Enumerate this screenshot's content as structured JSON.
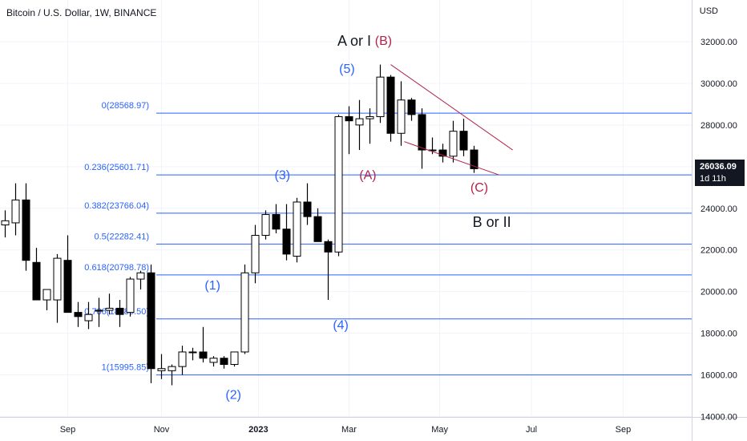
{
  "header": {
    "title": "Bitcoin / U.S. Dollar, 1W, BINANCE",
    "currency": "USD"
  },
  "price_tag": {
    "price": "26036.09",
    "countdown": "1d 11h"
  },
  "colors": {
    "up_body": "#ffffff",
    "down_body": "#000000",
    "candle_border": "#000000",
    "fib_line": "#2962ff",
    "fib_text": "#2962ff",
    "wave_blue": "#2962ff",
    "wave_red": "#b22449",
    "channel": "#b22449",
    "axis_text": "#131722",
    "grid": "#f0f3fa"
  },
  "chart_data": {
    "type": "candlestick",
    "title": "Bitcoin / U.S. Dollar, 1W, BINANCE",
    "y_axis": {
      "unit": "USD",
      "range": [
        14000,
        32500
      ],
      "ticks": [
        "14000.00",
        "16000.00",
        "18000.00",
        "20000.00",
        "22000.00",
        "24000.00",
        "26000.00",
        "28000.00",
        "30000.00",
        "32000.00"
      ]
    },
    "x_axis": {
      "ticks": [
        {
          "label": "Sep",
          "candle": 6
        },
        {
          "label": "Nov",
          "candle": 15
        },
        {
          "label": "2023",
          "candle": 24.3
        },
        {
          "label": "Mar",
          "candle": 33
        },
        {
          "label": "May",
          "candle": 41.7
        },
        {
          "label": "Jul",
          "candle": 50.5
        },
        {
          "label": "Sep",
          "candle": 59.3
        }
      ]
    },
    "candles": [
      {
        "o": 23200,
        "h": 23900,
        "l": 22600,
        "c": 23400
      },
      {
        "o": 23300,
        "h": 25200,
        "l": 22700,
        "c": 24400
      },
      {
        "o": 24400,
        "h": 25200,
        "l": 21000,
        "c": 21500
      },
      {
        "o": 21400,
        "h": 22100,
        "l": 19600,
        "c": 19600
      },
      {
        "o": 19600,
        "h": 20000,
        "l": 19100,
        "c": 20100
      },
      {
        "o": 19600,
        "h": 21800,
        "l": 18500,
        "c": 21600
      },
      {
        "o": 21500,
        "h": 22700,
        "l": 19100,
        "c": 19000
      },
      {
        "o": 19000,
        "h": 19500,
        "l": 18300,
        "c": 18800
      },
      {
        "o": 18600,
        "h": 19500,
        "l": 18200,
        "c": 18900
      },
      {
        "o": 19100,
        "h": 19700,
        "l": 18300,
        "c": 19100
      },
      {
        "o": 19100,
        "h": 19900,
        "l": 18900,
        "c": 19200
      },
      {
        "o": 19200,
        "h": 19600,
        "l": 18300,
        "c": 18900
      },
      {
        "o": 19000,
        "h": 20700,
        "l": 18800,
        "c": 20600
      },
      {
        "o": 20600,
        "h": 21000,
        "l": 20100,
        "c": 20900
      },
      {
        "o": 20900,
        "h": 21300,
        "l": 15600,
        "c": 16300
      },
      {
        "o": 16200,
        "h": 17000,
        "l": 15800,
        "c": 16300
      },
      {
        "o": 16200,
        "h": 16500,
        "l": 15500,
        "c": 16400
      },
      {
        "o": 16400,
        "h": 17400,
        "l": 16000,
        "c": 17100
      },
      {
        "o": 17100,
        "h": 17300,
        "l": 16700,
        "c": 17100
      },
      {
        "o": 17100,
        "h": 18300,
        "l": 16600,
        "c": 16800
      },
      {
        "o": 16600,
        "h": 16900,
        "l": 16400,
        "c": 16800
      },
      {
        "o": 16800,
        "h": 16900,
        "l": 16300,
        "c": 16500
      },
      {
        "o": 16500,
        "h": 17100,
        "l": 16400,
        "c": 17100
      },
      {
        "o": 17100,
        "h": 21300,
        "l": 17000,
        "c": 20900
      },
      {
        "o": 20900,
        "h": 23200,
        "l": 20400,
        "c": 22700
      },
      {
        "o": 22700,
        "h": 23900,
        "l": 22500,
        "c": 23700
      },
      {
        "o": 23700,
        "h": 24200,
        "l": 22800,
        "c": 23000
      },
      {
        "o": 23000,
        "h": 24200,
        "l": 21500,
        "c": 21800
      },
      {
        "o": 21700,
        "h": 24500,
        "l": 21400,
        "c": 24300
      },
      {
        "o": 24300,
        "h": 25200,
        "l": 23200,
        "c": 23600
      },
      {
        "o": 23600,
        "h": 24000,
        "l": 22500,
        "c": 22400
      },
      {
        "o": 22400,
        "h": 22500,
        "l": 19600,
        "c": 21900
      },
      {
        "o": 21900,
        "h": 28500,
        "l": 21700,
        "c": 28400
      },
      {
        "o": 28400,
        "h": 28900,
        "l": 26600,
        "c": 28200
      },
      {
        "o": 28000,
        "h": 29200,
        "l": 26800,
        "c": 28300
      },
      {
        "o": 28300,
        "h": 28800,
        "l": 27100,
        "c": 28400
      },
      {
        "o": 28400,
        "h": 30900,
        "l": 28100,
        "c": 30300
      },
      {
        "o": 30300,
        "h": 30400,
        "l": 27200,
        "c": 27600
      },
      {
        "o": 27600,
        "h": 30100,
        "l": 27000,
        "c": 29200
      },
      {
        "o": 29200,
        "h": 29300,
        "l": 28200,
        "c": 28500
      },
      {
        "o": 28500,
        "h": 28800,
        "l": 25900,
        "c": 26800
      },
      {
        "o": 26800,
        "h": 27400,
        "l": 26600,
        "c": 26800
      },
      {
        "o": 26800,
        "h": 27100,
        "l": 26200,
        "c": 26500
      },
      {
        "o": 26500,
        "h": 28200,
        "l": 26200,
        "c": 27700
      },
      {
        "o": 27700,
        "h": 28300,
        "l": 26500,
        "c": 26800
      },
      {
        "o": 26800,
        "h": 27000,
        "l": 25700,
        "c": 25900
      }
    ],
    "fib_levels": [
      {
        "label": "0(28568.97)",
        "price": 28568.97
      },
      {
        "label": "0.236(25601.71)",
        "price": 25601.71
      },
      {
        "label": "0.382(23766.04)",
        "price": 23766.04
      },
      {
        "label": "0.5(22282.41)",
        "price": 22282.41
      },
      {
        "label": "0.618(20798.78)",
        "price": 20798.78
      },
      {
        "label": "0.786(18686.50)",
        "price": 18686.5
      },
      {
        "label": "1(15995.85)",
        "price": 15995.85
      }
    ],
    "wave_labels": [
      {
        "text": "A or I",
        "color": "black",
        "candle": 33.5,
        "price": 31800,
        "size": 18
      },
      {
        "text": "(B)",
        "color": "red",
        "candle": 36.3,
        "price": 31850,
        "size": 16
      },
      {
        "text": "(5)",
        "color": "blue",
        "candle": 32.8,
        "price": 30500,
        "size": 16
      },
      {
        "text": "(3)",
        "color": "blue",
        "candle": 26.6,
        "price": 25400,
        "size": 16
      },
      {
        "text": "(A)",
        "color": "red",
        "candle": 34.8,
        "price": 25400,
        "size": 16
      },
      {
        "text": "(C)",
        "color": "red",
        "candle": 45.5,
        "price": 24800,
        "size": 16
      },
      {
        "text": "B or II",
        "color": "black",
        "candle": 46.7,
        "price": 23100,
        "size": 18
      },
      {
        "text": "(1)",
        "color": "blue",
        "candle": 19.9,
        "price": 20100,
        "size": 16
      },
      {
        "text": "(4)",
        "color": "blue",
        "candle": 32.2,
        "price": 18200,
        "size": 16
      },
      {
        "text": "(2)",
        "color": "blue",
        "candle": 21.9,
        "price": 14850,
        "size": 16
      }
    ],
    "channel_lines": [
      {
        "from": {
          "candle": 37.0,
          "price": 30900
        },
        "to": {
          "candle": 48.7,
          "price": 26800
        }
      },
      {
        "from": {
          "candle": 38.3,
          "price": 27200
        },
        "to": {
          "candle": 47.4,
          "price": 25600
        }
      }
    ]
  }
}
